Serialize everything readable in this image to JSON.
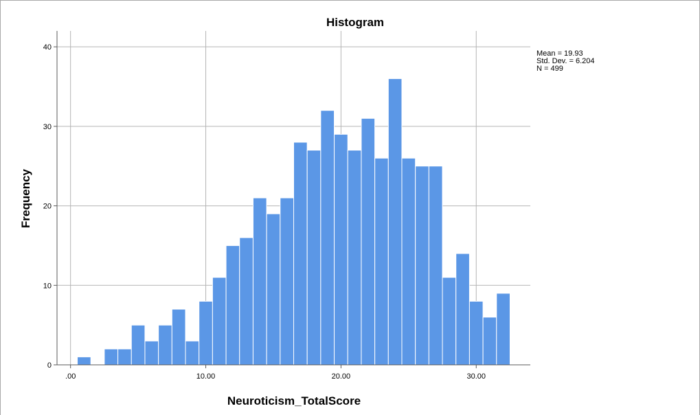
{
  "chart_data": {
    "type": "bar",
    "title": "Histogram",
    "xlabel": "Neuroticism_TotalScore",
    "ylabel": "Frequency",
    "xlim": [
      -1.0,
      34.0
    ],
    "ylim": [
      0,
      42
    ],
    "bin_width": 1,
    "bin_start": 0.5,
    "values": [
      1,
      0,
      2,
      2,
      5,
      3,
      5,
      7,
      3,
      8,
      11,
      15,
      16,
      21,
      19,
      21,
      28,
      27,
      32,
      29,
      27,
      31,
      26,
      36,
      26,
      25,
      25,
      11,
      14,
      8,
      6,
      9
    ],
    "x_ticks": [
      {
        "value": 0,
        "label": ".00"
      },
      {
        "value": 10,
        "label": "10.00"
      },
      {
        "value": 20,
        "label": "20.00"
      },
      {
        "value": 30,
        "label": "30.00"
      }
    ],
    "y_ticks": [
      {
        "value": 0,
        "label": "0"
      },
      {
        "value": 10,
        "label": "10"
      },
      {
        "value": 20,
        "label": "20"
      },
      {
        "value": 30,
        "label": "30"
      },
      {
        "value": 40,
        "label": "40"
      }
    ],
    "grid": true,
    "legend_position": "top-right",
    "stats": [
      "Mean = 19.93",
      "Std. Dev. = 6.204",
      "N = 499"
    ],
    "bar_color": "#5b97e6",
    "bar_edge_color": "#ffffff",
    "grid_color": "#b4b4b4",
    "axis_color": "#5a5a5a"
  }
}
